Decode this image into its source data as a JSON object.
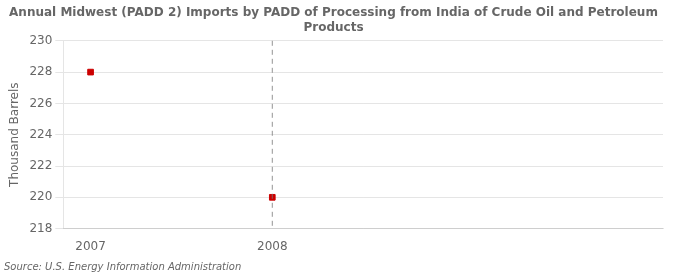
{
  "chart_data": {
    "type": "scatter",
    "title": "Annual Midwest (PADD 2) Imports by PADD of Processing from India of Crude Oil and Petroleum\nProducts",
    "ylabel": "Thousand Barrels",
    "source": "Source: U.S. Energy Information Administration",
    "x": [
      2007,
      2008
    ],
    "values": [
      228,
      220
    ],
    "color": "#cc0000",
    "marker": "square",
    "xlim": [
      2006.85,
      2010.15
    ],
    "xticks": [
      2007,
      2008
    ],
    "ylim": [
      218,
      230
    ],
    "yticks": [
      218,
      220,
      222,
      224,
      226,
      228,
      230
    ],
    "vline": 2008,
    "grid": "y"
  }
}
